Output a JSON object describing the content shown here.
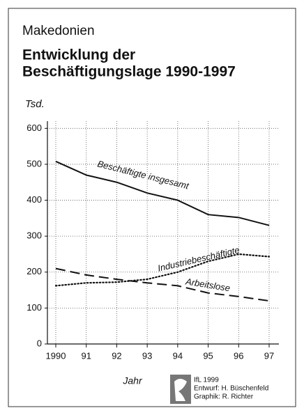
{
  "chart_data": {
    "type": "line",
    "region": "Makedonien",
    "title": [
      "Entwicklung der",
      "Beschäftigungslage 1990-1997"
    ],
    "y_unit": "Tsd.",
    "x_label": "Jahr",
    "categories": [
      "1990",
      "91",
      "92",
      "93",
      "94",
      "95",
      "96",
      "97"
    ],
    "series": [
      {
        "name": "Beschäftigte insgesamt",
        "color": "#111111",
        "style": "solid",
        "values": [
          508,
          470,
          450,
          420,
          400,
          360,
          352,
          330
        ]
      },
      {
        "name": "Industriebeschäftigte",
        "color": "#111111",
        "style": "dotted",
        "values": [
          162,
          170,
          172,
          180,
          200,
          230,
          250,
          243
        ]
      },
      {
        "name": "Arbeitslose",
        "color": "#111111",
        "style": "dashed",
        "values": [
          210,
          192,
          180,
          170,
          162,
          142,
          132,
          120
        ]
      }
    ],
    "ylim": [
      0,
      620
    ],
    "yticks": [
      0,
      100,
      200,
      300,
      400,
      500,
      600
    ],
    "grid": true,
    "credits": [
      "IfL 1999",
      "Entwurf: H. Büschenfeld",
      "Graphik: R. Richter"
    ]
  }
}
